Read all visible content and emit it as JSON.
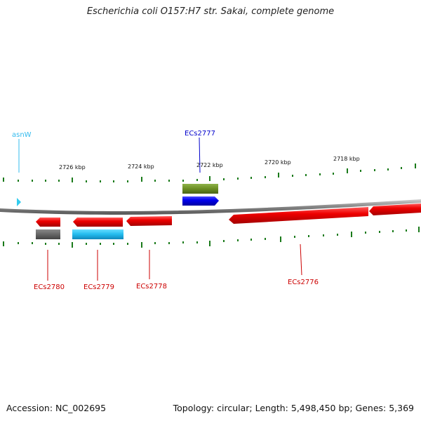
{
  "title": "Escherichia coli O157:H7 str. Sakai, complete genome",
  "footer": {
    "accession": "Accession: NC_002695",
    "topology": "Topology: circular; Length: 5,498,450 bp; Genes: 5,369"
  },
  "scale": {
    "tick_labels": [
      "2726 kbp",
      "2724 kbp",
      "2722 kbp",
      "2720 kbp",
      "2718 kbp"
    ]
  },
  "features": [
    {
      "name": "asnW",
      "type": "tRNA",
      "strand": "+",
      "color": "#33ccee"
    },
    {
      "name": "ECs2777",
      "type": "CDS",
      "strand": "+",
      "color": "#0000ee"
    },
    {
      "name": "ECs2780",
      "type": "CDS",
      "strand": "-",
      "color": "#ee0000"
    },
    {
      "name": "ECs2779",
      "type": "CDS",
      "strand": "-",
      "color": "#ee0000"
    },
    {
      "name": "ECs2778",
      "type": "CDS",
      "strand": "-",
      "color": "#ee0000"
    },
    {
      "name": "ECs2776",
      "type": "CDS",
      "strand": "-",
      "color": "#ee0000"
    }
  ],
  "colors": {
    "backbone": "#888888",
    "tick": "#1a7a1a",
    "forward_label": "#0000cc",
    "reverse_label": "#cc0000",
    "trna_label": "#33bbee",
    "cog_olive": "#6b8e23",
    "cog_gray": "#666666",
    "cog_cyan": "#22bbee"
  }
}
